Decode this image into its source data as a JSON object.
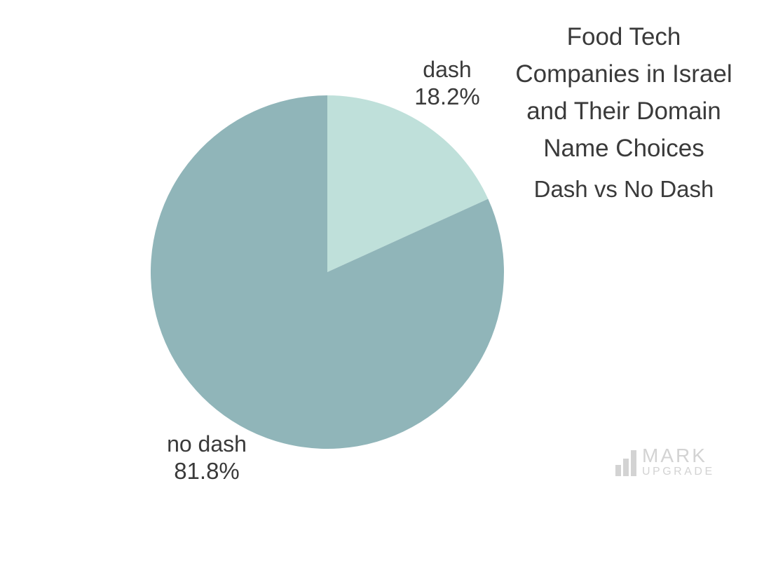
{
  "title": {
    "lines": [
      "Food Tech",
      "Companies in Israel",
      "and Their Domain",
      "Name Choices"
    ],
    "subtitle": "Dash vs No Dash",
    "color": "#3a3a3a"
  },
  "chart_data": {
    "type": "pie",
    "title": "Food Tech Companies in Israel and Their Domain Name Choices",
    "subtitle": "Dash vs No Dash",
    "categories": [
      "dash",
      "no dash"
    ],
    "values": [
      18.2,
      81.8
    ],
    "unit": "percent",
    "colors": [
      "#bfe0da",
      "#90b5b9"
    ],
    "start_angle_deg": 0,
    "direction": "clockwise",
    "legend_position": "none",
    "labels": [
      {
        "name": "dash",
        "value_label": "18.2%"
      },
      {
        "name": "no dash",
        "value_label": "81.8%"
      }
    ]
  },
  "watermark": {
    "brand_top": "MARK",
    "brand_bottom": "UPGRADE",
    "color": "#d3d3d3"
  }
}
